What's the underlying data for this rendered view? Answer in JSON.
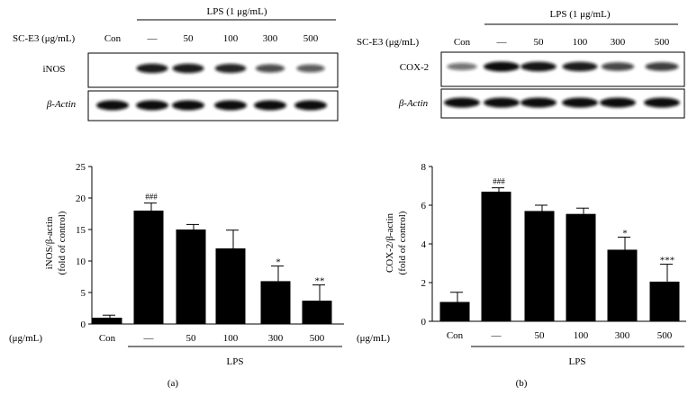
{
  "panels": [
    {
      "id": "a",
      "caption": "(a)",
      "blot": {
        "header": "LPS (1 μg/mL)",
        "dose_row_label": "SC-E3 (μg/mL)",
        "lane_labels": [
          "Con",
          "—",
          "50",
          "100",
          "300",
          "500"
        ],
        "rows": [
          {
            "label": "iNOS",
            "band_intensity": [
              0.0,
              0.9,
              0.9,
              0.85,
              0.6,
              0.5
            ]
          },
          {
            "label": "β-Actin",
            "band_intensity": [
              1.0,
              1.0,
              1.0,
              1.0,
              1.0,
              1.0
            ]
          }
        ]
      }
    },
    {
      "id": "b",
      "caption": "(b)",
      "blot": {
        "header": "LPS (1 μg/mL)",
        "dose_row_label": "SC-E3 (μg/mL)",
        "lane_labels": [
          "Con",
          "—",
          "50",
          "100",
          "300",
          "500"
        ],
        "rows": [
          {
            "label": "COX-2",
            "band_intensity": [
              0.35,
              1.0,
              0.95,
              0.9,
              0.65,
              0.7
            ]
          },
          {
            "label": "β-Actin",
            "band_intensity": [
              1.0,
              1.0,
              1.0,
              1.0,
              1.0,
              1.0
            ]
          }
        ]
      }
    }
  ],
  "chart_data": [
    {
      "type": "bar",
      "panel": "a",
      "categories": [
        "Con",
        "—",
        "50",
        "100",
        "300",
        "500"
      ],
      "values": [
        1.0,
        18.0,
        15.0,
        12.0,
        6.8,
        3.7
      ],
      "errors": [
        0.4,
        1.2,
        0.8,
        2.9,
        2.4,
        2.5
      ],
      "annotations": [
        "",
        "###",
        "",
        "",
        "*",
        "**"
      ],
      "ylabel_line1": "iNOS/β-actin",
      "ylabel_line2": "(fold of control)",
      "xunit_label": "(μg/mL)",
      "group_label": "LPS",
      "ylim": [
        0,
        25
      ],
      "yticks": [
        0,
        5,
        10,
        15,
        20,
        25
      ],
      "bar_color": "#000000"
    },
    {
      "type": "bar",
      "panel": "b",
      "categories": [
        "Con",
        "—",
        "50",
        "100",
        "300",
        "500"
      ],
      "values": [
        1.0,
        6.7,
        5.7,
        5.55,
        3.7,
        2.05
      ],
      "errors": [
        0.5,
        0.2,
        0.3,
        0.3,
        0.65,
        0.9
      ],
      "annotations": [
        "",
        "###",
        "",
        "",
        "*",
        "***"
      ],
      "ylabel_line1": "COX-2/β-actin",
      "ylabel_line2": "(fold of control)",
      "xunit_label": "(μg/mL)",
      "group_label": "LPS",
      "ylim": [
        0,
        8
      ],
      "yticks": [
        0,
        2,
        4,
        6,
        8
      ],
      "bar_color": "#000000"
    }
  ]
}
